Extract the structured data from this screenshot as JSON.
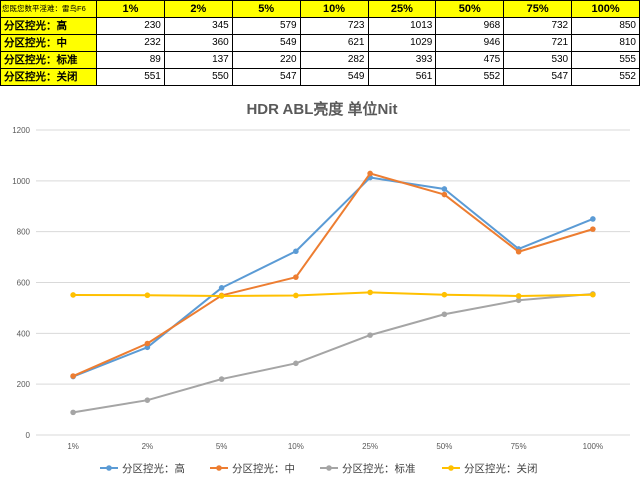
{
  "table": {
    "corner": "您既您数平淫难：雷鸟F6",
    "headers": [
      "1%",
      "2%",
      "5%",
      "10%",
      "25%",
      "50%",
      "75%",
      "100%"
    ],
    "rows": [
      {
        "label": "分区控光：高",
        "values": [
          230,
          345,
          579,
          723,
          1013,
          968,
          732,
          850
        ]
      },
      {
        "label": "分区控光：中",
        "values": [
          232,
          360,
          549,
          621,
          1029,
          946,
          721,
          810
        ]
      },
      {
        "label": "分区控光：标准",
        "values": [
          89,
          137,
          220,
          282,
          393,
          475,
          530,
          555
        ]
      },
      {
        "label": "分区控光：关闭",
        "values": [
          551,
          550,
          547,
          549,
          561,
          552,
          547,
          552
        ]
      }
    ]
  },
  "chart_data": {
    "type": "line",
    "title": "HDR ABL亮度   单位Nit",
    "categories": [
      "1%",
      "2%",
      "5%",
      "10%",
      "25%",
      "50%",
      "75%",
      "100%"
    ],
    "ylim": [
      0,
      1200
    ],
    "yticks": [
      0,
      200,
      400,
      600,
      800,
      1000,
      1200
    ],
    "grid": "horizontal",
    "legend": "bottom",
    "series": [
      {
        "name": "分区控光：高",
        "color": "#5b9bd5",
        "values": [
          230,
          345,
          579,
          723,
          1013,
          968,
          732,
          850
        ]
      },
      {
        "name": "分区控光：中",
        "color": "#ed7d31",
        "values": [
          232,
          360,
          549,
          621,
          1029,
          946,
          721,
          810
        ]
      },
      {
        "name": "分区控光：标准",
        "color": "#a5a5a5",
        "values": [
          89,
          137,
          220,
          282,
          393,
          475,
          530,
          555
        ]
      },
      {
        "name": "分区控光：关闭",
        "color": "#ffc000",
        "values": [
          551,
          550,
          547,
          549,
          561,
          552,
          547,
          552
        ]
      }
    ]
  }
}
